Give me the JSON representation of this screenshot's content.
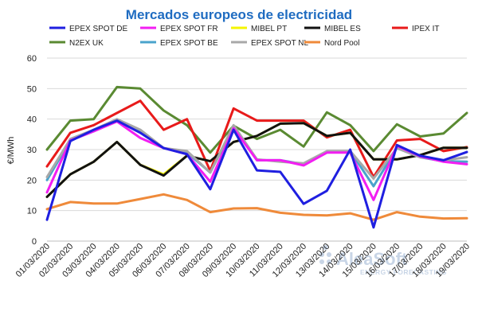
{
  "chart_data": {
    "type": "line",
    "title": "Mercados europeos de electricidad",
    "ylabel": "€/MWh",
    "xlabel": "",
    "ylim": [
      0,
      60
    ],
    "yticks": [
      0,
      10,
      20,
      30,
      40,
      50,
      60
    ],
    "grid": true,
    "legend_position": "top",
    "categories": [
      "01/03/2020",
      "02/03/2020",
      "03/03/2020",
      "04/03/2020",
      "05/03/2020",
      "06/03/2020",
      "07/03/2020",
      "08/03/2020",
      "09/03/2020",
      "10/03/2020",
      "11/03/2020",
      "12/03/2020",
      "13/03/2020",
      "14/03/2020",
      "15/03/2020",
      "16/03/2020",
      "17/03/2020",
      "18/03/2020",
      "19/03/2020"
    ],
    "series": [
      {
        "name": "EPEX SPOT DE",
        "color": "#1f1fe0",
        "values": [
          7,
          32.8,
          36.5,
          39.5,
          35.5,
          30.5,
          28.5,
          17,
          36.5,
          23.2,
          22.7,
          12.2,
          16.5,
          30,
          4.5,
          31.5,
          28,
          26.5,
          29.2
        ]
      },
      {
        "name": "EPEX SPOT FR",
        "color": "#f21ef2",
        "values": [
          16,
          33,
          36,
          39.2,
          33.8,
          30.5,
          28.5,
          19.5,
          37,
          26.5,
          26.5,
          24.8,
          29,
          29,
          13.5,
          31.2,
          27.8,
          26,
          25.2
        ]
      },
      {
        "name": "MIBEL PT",
        "color": "#f5f500",
        "values": [
          14.5,
          21.9,
          26,
          32.5,
          25,
          21.9,
          28,
          26.2,
          32.5,
          34.5,
          38.5,
          38.7,
          34.5,
          35.5,
          26.8,
          26.8,
          28.2,
          30.6,
          30.6
        ]
      },
      {
        "name": "MIBEL ES",
        "color": "#111111",
        "values": [
          14.5,
          21.9,
          26,
          32.5,
          25,
          21.5,
          28,
          26.2,
          32.5,
          34.5,
          38.5,
          38.7,
          34.5,
          35.5,
          26.8,
          26.8,
          28.2,
          30.6,
          30.6
        ]
      },
      {
        "name": "IPEX IT",
        "color": "#e81a1a",
        "values": [
          24.5,
          35.5,
          38,
          42,
          46,
          36.5,
          40,
          23,
          43.5,
          39.5,
          39.5,
          39.5,
          34,
          36.5,
          21,
          33,
          33.5,
          29.5,
          30.8
        ]
      },
      {
        "name": "N2EX UK",
        "color": "#5a8a32",
        "values": [
          30,
          39.5,
          40,
          50.5,
          50,
          42.8,
          38,
          29,
          37.8,
          33.5,
          36.5,
          31,
          42.2,
          38,
          29.5,
          38.3,
          34.3,
          35.3,
          42
        ]
      },
      {
        "name": "EPEX SPOT BE",
        "color": "#4aa3cc",
        "values": [
          20,
          33,
          36,
          39.5,
          36,
          30.5,
          29,
          22.5,
          37.5,
          26.5,
          26.5,
          25.2,
          29,
          29.5,
          18,
          30.5,
          27.5,
          26.2,
          26
        ]
      },
      {
        "name": "EPEX SPOT NL",
        "color": "#a8a8a8",
        "values": [
          21,
          33.5,
          36.5,
          40,
          36.5,
          30.5,
          29.5,
          22.5,
          38,
          26.8,
          26,
          25.5,
          29.5,
          29.5,
          20.5,
          30.5,
          27.5,
          26.5,
          27.5
        ]
      },
      {
        "name": "Nord Pool",
        "color": "#ef8a3a",
        "values": [
          10.5,
          12.8,
          12.3,
          12.3,
          13.8,
          15.3,
          13.5,
          9.5,
          10.7,
          10.8,
          9.3,
          8.6,
          8.4,
          9.1,
          7,
          9.5,
          8,
          7.4,
          7.5
        ]
      }
    ]
  },
  "watermark": {
    "brand": "AleaSoft",
    "tagline": "ENERGY FORECASTING"
  }
}
